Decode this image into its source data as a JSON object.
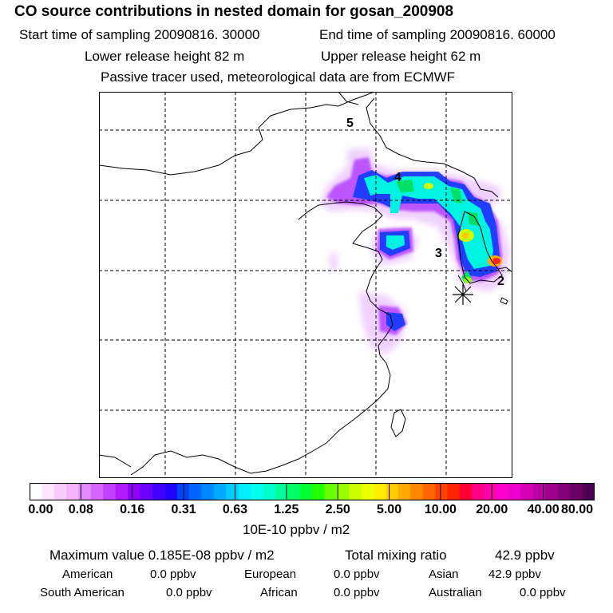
{
  "header": {
    "title": "CO  source contributions in nested domain for gosan_200908",
    "start_label": "Start time of sampling 20090816. 30000",
    "end_label": "End time of sampling 20090816. 60000",
    "lower_label": "Lower release height   82 m",
    "upper_label": "Upper release height   62 m",
    "subtitle": "Passive tracer used, meteorological data are from ECMWF"
  },
  "map": {
    "labels": [
      "5",
      "4",
      "3",
      "2"
    ],
    "receptor": "gosan"
  },
  "colorbar": {
    "ticks": [
      "0.00",
      "0.08",
      "0.16",
      "0.31",
      "0.63",
      "1.25",
      "2.50",
      "5.00",
      "10.00",
      "20.00",
      "40.00",
      "80.00"
    ],
    "colors": [
      "#ffffff",
      "#fde6ff",
      "#f9ccff",
      "#f4b3ff",
      "#e48cff",
      "#d466ff",
      "#c440ff",
      "#b31aff",
      "#8f00ff",
      "#6a00ff",
      "#4400ff",
      "#2200ff",
      "#0044ff",
      "#0066ff",
      "#0088ff",
      "#00aaff",
      "#00ccff",
      "#00eeff",
      "#00ffee",
      "#00ffcc",
      "#00ff99",
      "#00ff66",
      "#00ff33",
      "#22ff00",
      "#66ff00",
      "#99ff00",
      "#ccff00",
      "#eeff00",
      "#ffee00",
      "#ffcc00",
      "#ffaa00",
      "#ff8800",
      "#ff6600",
      "#ff4400",
      "#ff2200",
      "#ff0033",
      "#ff0088",
      "#ff00aa",
      "#ff00cc",
      "#ee00cc",
      "#d400b8",
      "#bb00a6",
      "#a00090",
      "#85007a",
      "#6a0066",
      "#500050"
    ],
    "unit": "10E-10 ppbv / m2"
  },
  "summary": {
    "max_label": "Maximum value  0.185E-08 ppbv / m2",
    "total_label": "Total mixing ratio",
    "total_value": "42.9 ppbv",
    "american_label": "American",
    "american_value": "0.0 ppbv",
    "european_label": "European",
    "european_value": "0.0 ppbv",
    "asian_label": "Asian",
    "asian_value": "42.9 ppbv",
    "south_american_label": "South American",
    "south_american_value": "0.0 ppbv",
    "african_label": "African",
    "african_value": "0.0 ppbv",
    "australian_label": "Australian",
    "australian_value": "0.0 ppbv"
  }
}
